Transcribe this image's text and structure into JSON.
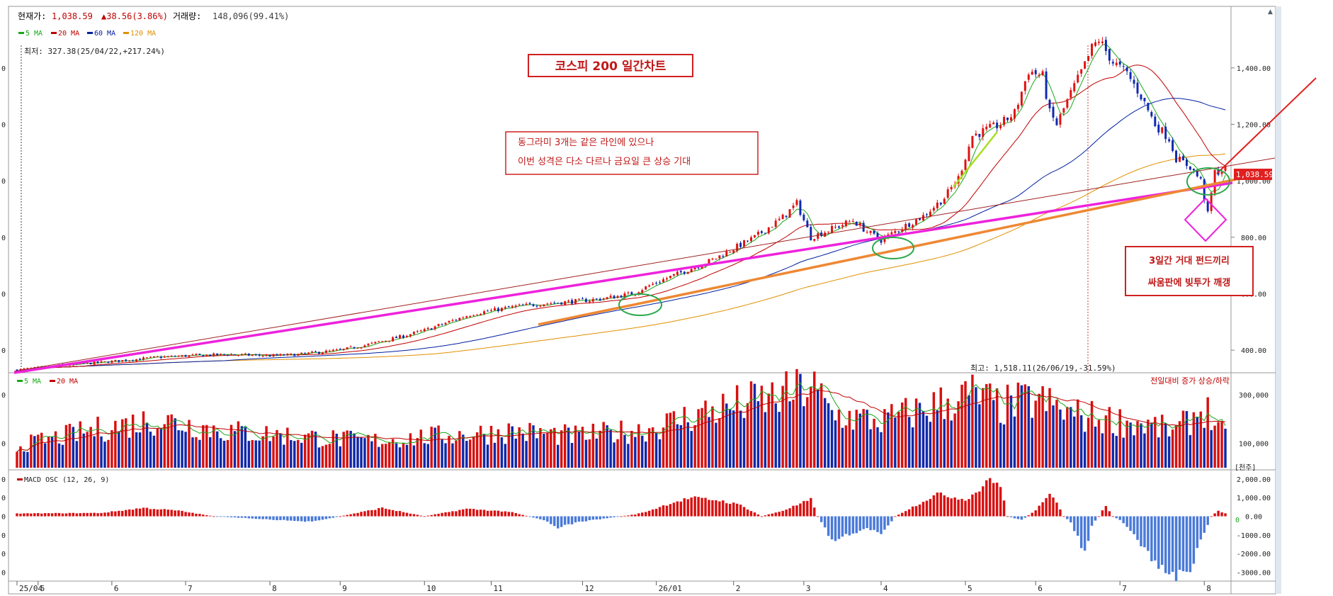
{
  "header": {
    "price_label": "현재가:",
    "price_value": "1,038.59",
    "change_text": "▲38.56(3.86%)",
    "volume_label": "거래량:",
    "volume_value": "148,096(99.41%)"
  },
  "price_legend": [
    {
      "label": "5 MA",
      "color": "#1aa81a"
    },
    {
      "label": "20 MA",
      "color": "#c00000"
    },
    {
      "label": "60 MA",
      "color": "#0020a0"
    },
    {
      "label": "120 MA",
      "color": "#e09000"
    }
  ],
  "low_label": "최저: 327.38(25/04/22,+217.24%)",
  "high_label": "최고: 1,518.11(26/06/19,-31.59%)",
  "title_box": "코스피 200 일간차트",
  "note_box": [
    "동그라미 3개는 같은 라인에 있으나",
    "이번 성격은 다소 다르나 금요일 큰 상승 기대"
  ],
  "note_box2": [
    "3일간 거대 펀드끼리",
    "싸움판에 빚투가 깨갱"
  ],
  "current_price_tag": "1,038.59",
  "volume_legend": [
    {
      "label": "5 MA",
      "color": "#1aa81a"
    },
    {
      "label": "20 MA",
      "color": "#c00000"
    }
  ],
  "volume_right_label": "전일대비 증가 상승/하락",
  "volume_unit": "[천주]",
  "macd_label": "MACD OSC (12, 26, 9)",
  "macd_zero_label": "0",
  "left_axis_fragments": {
    "price": [
      "0",
      "0",
      "0",
      "0",
      "0",
      "0"
    ],
    "volume": [
      "0",
      "0"
    ],
    "macd": [
      "0",
      "0",
      "0",
      "0",
      "0",
      "0"
    ]
  },
  "chart_data": {
    "type": "candlestick",
    "title": "코스피 200 일간차트",
    "price_axis": {
      "ticks": [
        "1,400.00",
        "1,200.00",
        "1,000.00",
        "800.00",
        "600.00",
        "400.00"
      ],
      "ylim": [
        330,
        1540
      ]
    },
    "volume_axis": {
      "ticks": [
        "300,000",
        "100,000"
      ],
      "ylim": [
        0,
        350000
      ]
    },
    "macd_axis": {
      "ticks": [
        "2,000.00",
        "1,000.00",
        "0.00",
        "-1000.00",
        "-2000.00",
        "-3000.00"
      ],
      "ylim": [
        -3400,
        2300
      ]
    },
    "x_ticks": [
      "25/04",
      "5",
      "6",
      "7",
      "8",
      "9",
      "10",
      "11",
      "12",
      "26/01",
      "2",
      "3",
      "4",
      "5",
      "6",
      "7",
      "8"
    ],
    "month_index": [
      0,
      6,
      27,
      48,
      72,
      92,
      116,
      135,
      161,
      182,
      204,
      224,
      246,
      270,
      290,
      314,
      338
    ],
    "n_days": 345,
    "price_anchors": [
      [
        0,
        330
      ],
      [
        12,
        345
      ],
      [
        27,
        360
      ],
      [
        40,
        375
      ],
      [
        48,
        380
      ],
      [
        60,
        385
      ],
      [
        72,
        380
      ],
      [
        80,
        385
      ],
      [
        92,
        400
      ],
      [
        100,
        420
      ],
      [
        110,
        450
      ],
      [
        116,
        470
      ],
      [
        124,
        505
      ],
      [
        130,
        530
      ],
      [
        135,
        540
      ],
      [
        142,
        555
      ],
      [
        150,
        565
      ],
      [
        161,
        575
      ],
      [
        168,
        585
      ],
      [
        175,
        600
      ],
      [
        182,
        640
      ],
      [
        190,
        680
      ],
      [
        198,
        720
      ],
      [
        204,
        760
      ],
      [
        210,
        800
      ],
      [
        218,
        870
      ],
      [
        222,
        920
      ],
      [
        226,
        800
      ],
      [
        232,
        830
      ],
      [
        238,
        860
      ],
      [
        242,
        820
      ],
      [
        246,
        790
      ],
      [
        252,
        835
      ],
      [
        258,
        875
      ],
      [
        264,
        940
      ],
      [
        268,
        1010
      ],
      [
        272,
        1160
      ],
      [
        276,
        1180
      ],
      [
        280,
        1200
      ],
      [
        284,
        1240
      ],
      [
        288,
        1390
      ],
      [
        292,
        1370
      ],
      [
        294,
        1240
      ],
      [
        296,
        1200
      ],
      [
        300,
        1310
      ],
      [
        304,
        1410
      ],
      [
        306,
        1470
      ],
      [
        308,
        1500
      ],
      [
        312,
        1420
      ],
      [
        316,
        1380
      ],
      [
        320,
        1300
      ],
      [
        324,
        1200
      ],
      [
        328,
        1150
      ],
      [
        330,
        1080
      ],
      [
        334,
        1050
      ],
      [
        337,
        1000
      ],
      [
        339,
        880
      ],
      [
        341,
        1030
      ],
      [
        344,
        1039
      ]
    ],
    "volume_anchors": [
      [
        0,
        90000
      ],
      [
        20,
        150000
      ],
      [
        40,
        200000
      ],
      [
        60,
        150000
      ],
      [
        80,
        130000
      ],
      [
        100,
        110000
      ],
      [
        120,
        130000
      ],
      [
        140,
        150000
      ],
      [
        160,
        130000
      ],
      [
        180,
        160000
      ],
      [
        196,
        230000
      ],
      [
        206,
        260000
      ],
      [
        220,
        300000
      ],
      [
        226,
        340000
      ],
      [
        232,
        220000
      ],
      [
        246,
        190000
      ],
      [
        260,
        250000
      ],
      [
        272,
        300000
      ],
      [
        280,
        250000
      ],
      [
        290,
        280000
      ],
      [
        300,
        220000
      ],
      [
        310,
        200000
      ],
      [
        320,
        180000
      ],
      [
        330,
        150000
      ],
      [
        338,
        250000
      ],
      [
        344,
        120000
      ]
    ],
    "macd_anchors": [
      [
        0,
        150
      ],
      [
        24,
        180
      ],
      [
        36,
        450
      ],
      [
        46,
        300
      ],
      [
        56,
        0
      ],
      [
        70,
        -150
      ],
      [
        84,
        -300
      ],
      [
        104,
        450
      ],
      [
        116,
        0
      ],
      [
        128,
        400
      ],
      [
        140,
        250
      ],
      [
        150,
        -200
      ],
      [
        154,
        -600
      ],
      [
        160,
        -300
      ],
      [
        176,
        100
      ],
      [
        180,
        300
      ],
      [
        186,
        700
      ],
      [
        192,
        1000
      ],
      [
        200,
        850
      ],
      [
        206,
        600
      ],
      [
        212,
        0
      ],
      [
        218,
        300
      ],
      [
        226,
        900
      ],
      [
        228,
        0
      ],
      [
        232,
        -1300
      ],
      [
        238,
        -900
      ],
      [
        242,
        -600
      ],
      [
        246,
        -1000
      ],
      [
        250,
        0
      ],
      [
        256,
        600
      ],
      [
        262,
        1200
      ],
      [
        270,
        900
      ],
      [
        274,
        1400
      ],
      [
        276,
        1950
      ],
      [
        280,
        1700
      ],
      [
        282,
        0
      ],
      [
        286,
        -200
      ],
      [
        290,
        300
      ],
      [
        294,
        1300
      ],
      [
        296,
        800
      ],
      [
        298,
        0
      ],
      [
        300,
        -300
      ],
      [
        304,
        -2000
      ],
      [
        306,
        -500
      ],
      [
        308,
        0
      ],
      [
        310,
        600
      ],
      [
        312,
        0
      ],
      [
        314,
        -200
      ],
      [
        318,
        -1000
      ],
      [
        324,
        -2500
      ],
      [
        330,
        -3300
      ],
      [
        334,
        -2800
      ],
      [
        338,
        -900
      ],
      [
        340,
        0
      ],
      [
        342,
        300
      ],
      [
        344,
        150
      ]
    ],
    "series": [
      {
        "name": "5 MA",
        "color": "#1aa81a"
      },
      {
        "name": "20 MA",
        "color": "#c00000"
      },
      {
        "name": "60 MA",
        "color": "#0020a0"
      },
      {
        "name": "120 MA",
        "color": "#e09000"
      }
    ]
  }
}
